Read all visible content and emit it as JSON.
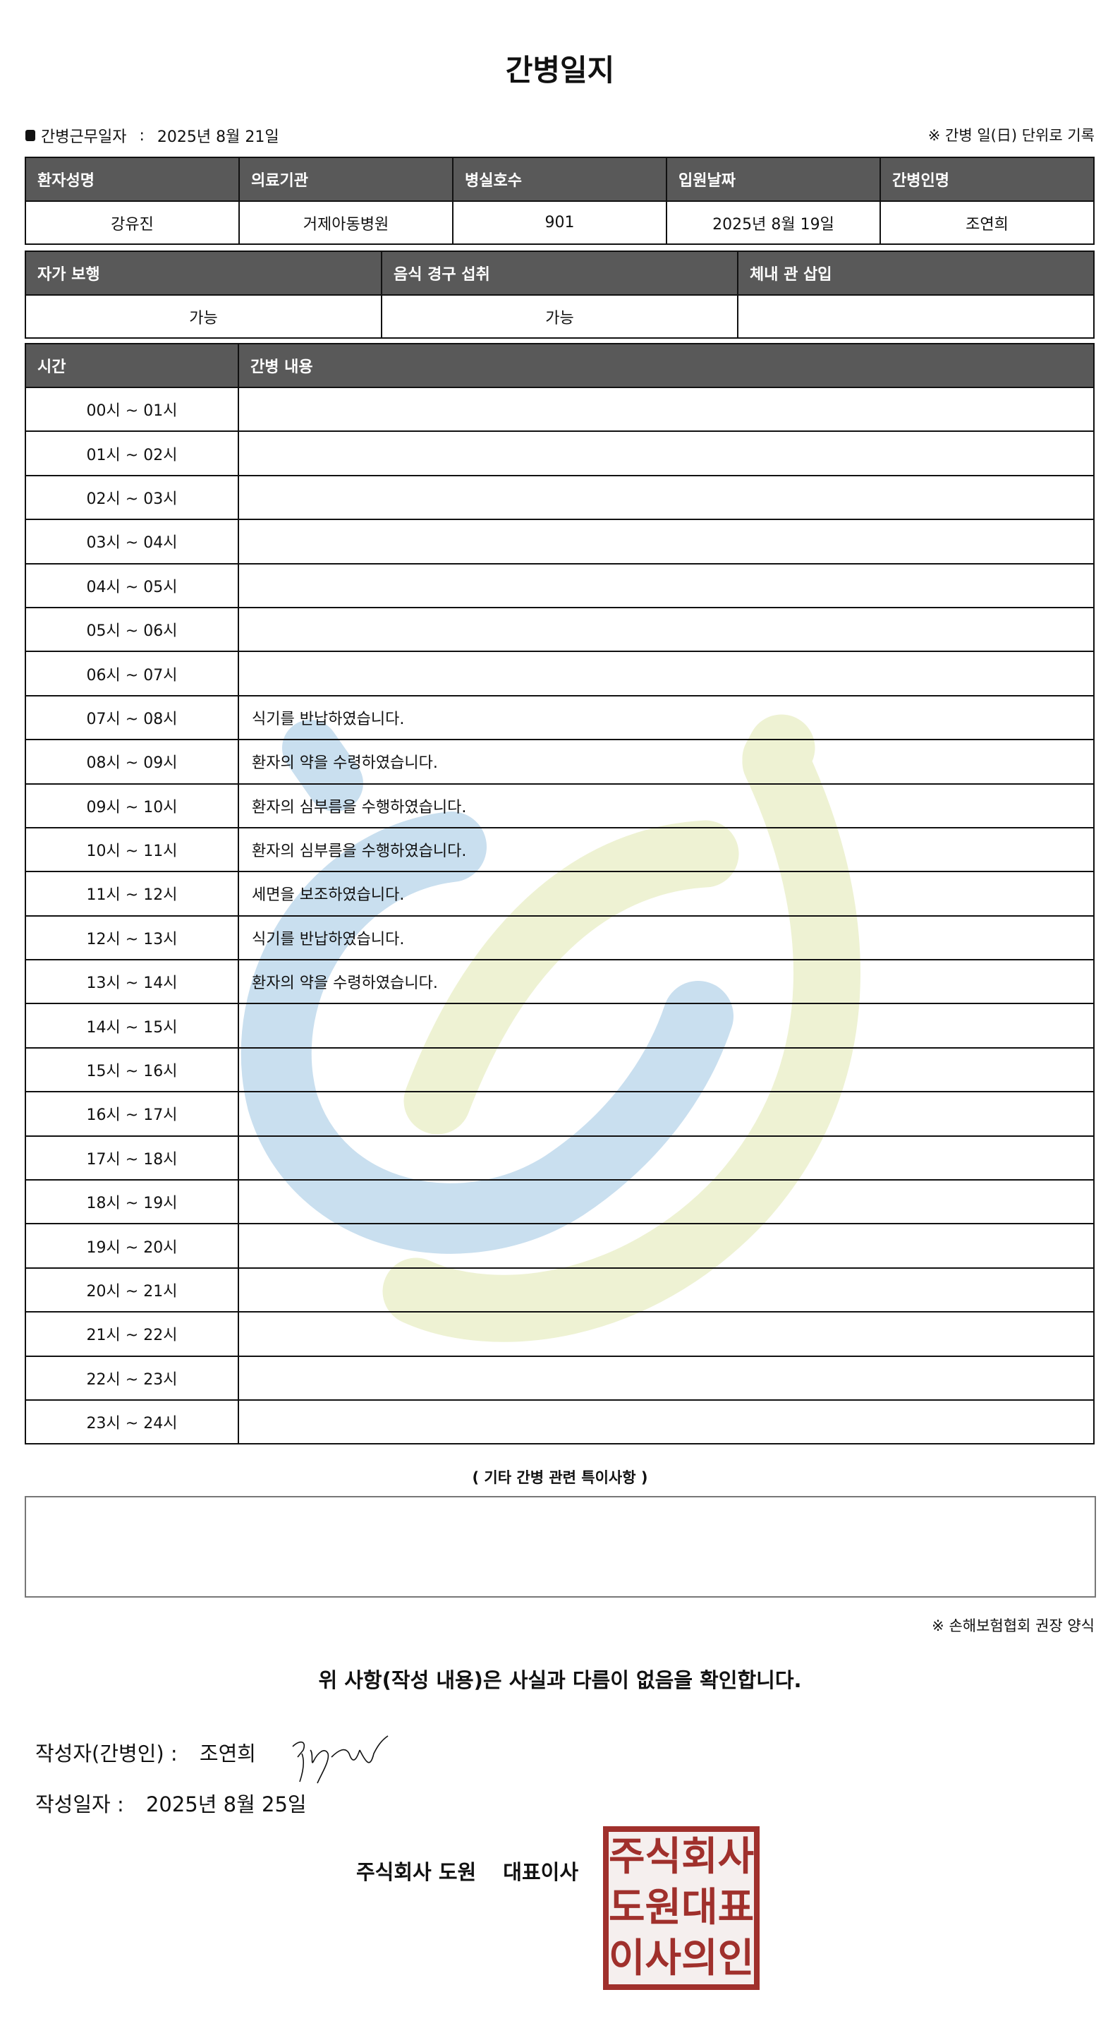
{
  "title": "간병일지",
  "work_date": {
    "label": "간병근무일자",
    "sep": ":",
    "value": "2025년 8월 21일"
  },
  "unit_note": "※ 간병 일(日) 단위로 기록",
  "info_table": {
    "headers": [
      "환자성명",
      "의료기관",
      "병실호수",
      "입원날짜",
      "간병인명"
    ],
    "values": [
      "강유진",
      "거제아동병원",
      "901",
      "2025년 8월 19일",
      "조연희"
    ]
  },
  "status_table": {
    "headers": [
      "자가 보행",
      "음식 경구 섭취",
      "체내 관 삽입"
    ],
    "values": [
      "가능",
      "가능",
      ""
    ]
  },
  "log_table": {
    "headers": [
      "시간",
      "간병 내용"
    ],
    "rows": [
      {
        "time": "00시 ~ 01시",
        "content": ""
      },
      {
        "time": "01시 ~ 02시",
        "content": ""
      },
      {
        "time": "02시 ~ 03시",
        "content": ""
      },
      {
        "time": "03시 ~ 04시",
        "content": ""
      },
      {
        "time": "04시 ~ 05시",
        "content": ""
      },
      {
        "time": "05시 ~ 06시",
        "content": ""
      },
      {
        "time": "06시 ~ 07시",
        "content": ""
      },
      {
        "time": "07시 ~ 08시",
        "content": "식기를 반납하였습니다."
      },
      {
        "time": "08시 ~ 09시",
        "content": "환자의 약을 수령하였습니다."
      },
      {
        "time": "09시 ~ 10시",
        "content": "환자의 심부름을 수행하였습니다."
      },
      {
        "time": "10시 ~ 11시",
        "content": "환자의 심부름을 수행하였습니다."
      },
      {
        "time": "11시 ~ 12시",
        "content": "세면을 보조하였습니다."
      },
      {
        "time": "12시 ~ 13시",
        "content": "식기를 반납하였습니다."
      },
      {
        "time": "13시 ~ 14시",
        "content": "환자의 약을 수령하였습니다."
      },
      {
        "time": "14시 ~ 15시",
        "content": ""
      },
      {
        "time": "15시 ~ 16시",
        "content": ""
      },
      {
        "time": "16시 ~ 17시",
        "content": ""
      },
      {
        "time": "17시 ~ 18시",
        "content": ""
      },
      {
        "time": "18시 ~ 19시",
        "content": ""
      },
      {
        "time": "19시 ~ 20시",
        "content": ""
      },
      {
        "time": "20시 ~ 21시",
        "content": ""
      },
      {
        "time": "21시 ~ 22시",
        "content": ""
      },
      {
        "time": "22시 ~ 23시",
        "content": ""
      },
      {
        "time": "23시 ~ 24시",
        "content": ""
      }
    ]
  },
  "etc_label": "( 기타 간병 관련 특이사항 )",
  "etc_content": "",
  "association_note": "※ 손해보험협회 권장 양식",
  "confirm_text": "위 사항(작성 내용)은 사실과 다름이 없음을 확인합니다.",
  "writer": {
    "label": "작성자(간병인) :",
    "name": "조연희"
  },
  "written_date": {
    "label": "작성일자 :",
    "value": "2025년 8월 25일"
  },
  "company": {
    "name": "주식회사 도원",
    "role": "대표이사"
  },
  "stamp_text": "주식회사도원대표이사의인",
  "colors": {
    "header_bg": "#595959",
    "stamp": "#a0302c",
    "watermark_blue": "#c9dfef",
    "watermark_green": "#eef2d3"
  }
}
